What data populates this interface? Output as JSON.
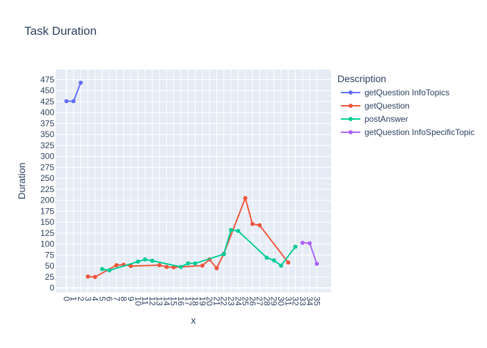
{
  "chart_data": {
    "type": "line",
    "title": "Task Duration",
    "xlabel": "x",
    "ylabel": "Duration",
    "xlim": [
      -1.5,
      37
    ],
    "ylim": [
      -10,
      498
    ],
    "xticks": [
      0,
      1,
      2,
      3,
      4,
      5,
      6,
      7,
      8,
      9,
      10,
      11,
      12,
      13,
      14,
      15,
      16,
      17,
      18,
      19,
      20,
      21,
      22,
      23,
      24,
      25,
      26,
      27,
      28,
      29,
      30,
      31,
      32,
      33,
      34,
      35
    ],
    "yticks": [
      0,
      25,
      50,
      75,
      100,
      125,
      150,
      175,
      200,
      225,
      250,
      275,
      300,
      325,
      350,
      375,
      400,
      425,
      450,
      475
    ],
    "legend": {
      "title": "Description",
      "position": "right"
    },
    "grid": true,
    "series": [
      {
        "name": "getQuestion InfoTopics",
        "color": "#636efa",
        "x": [
          0,
          1,
          2
        ],
        "y": [
          426,
          426,
          468
        ]
      },
      {
        "name": "getQuestion",
        "color": "#ef553b",
        "x": [
          3,
          4,
          7,
          8,
          9,
          13,
          14,
          15,
          19,
          20,
          21,
          22,
          25,
          26,
          27,
          31
        ],
        "y": [
          26,
          25,
          52,
          53,
          50,
          52,
          48,
          47,
          51,
          65,
          45,
          78,
          205,
          146,
          143,
          58
        ]
      },
      {
        "name": "postAnswer",
        "color": "#00cc96",
        "x": [
          5,
          6,
          10,
          11,
          12,
          16,
          17,
          18,
          22,
          23,
          24,
          28,
          29,
          30,
          32
        ],
        "y": [
          43,
          40,
          60,
          65,
          62,
          48,
          56,
          56,
          77,
          132,
          130,
          69,
          63,
          51,
          94
        ]
      },
      {
        "name": "getQuestion InfoSpecificTopic",
        "color": "#ab63fa",
        "x": [
          33,
          34,
          35
        ],
        "y": [
          103,
          102,
          55
        ]
      }
    ]
  }
}
